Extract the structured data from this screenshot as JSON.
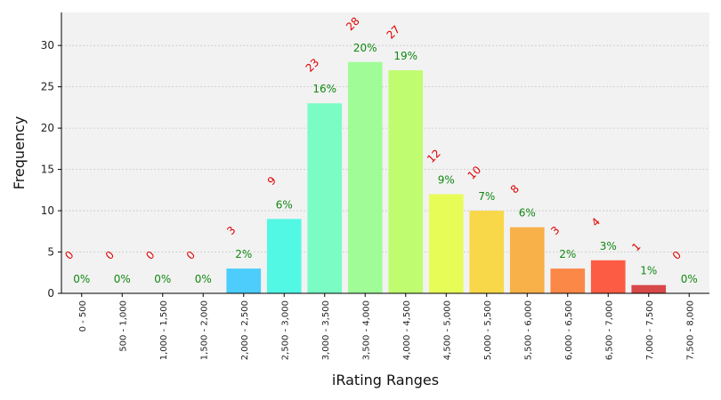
{
  "chart_data": {
    "type": "bar",
    "xlabel": "iRating Ranges",
    "ylabel": "Frequency",
    "ylim": [
      0,
      34
    ],
    "yticks": [
      0,
      5,
      10,
      15,
      20,
      25,
      30
    ],
    "grid": true,
    "categories": [
      "0 - 500",
      "500 - 1,000",
      "1,000 - 1,500",
      "1,500 - 2,000",
      "2,000 - 2,500",
      "2,500 - 3,000",
      "3,000 - 3,500",
      "3,500 - 4,000",
      "4,000 - 4,500",
      "4,500 - 5,000",
      "5,000 - 5,500",
      "5,500 - 6,000",
      "6,000 - 6,500",
      "6,500 - 7,000",
      "7,000 - 7,500",
      "7,500 - 8,000"
    ],
    "values": [
      0,
      0,
      0,
      0,
      3,
      9,
      23,
      28,
      27,
      12,
      10,
      8,
      3,
      4,
      1,
      0
    ],
    "percent_labels": [
      "0%",
      "0%",
      "0%",
      "0%",
      "2%",
      "6%",
      "16%",
      "20%",
      "19%",
      "9%",
      "7%",
      "6%",
      "2%",
      "3%",
      "1%",
      "0%"
    ],
    "bar_colors": [
      "#3a3ad4",
      "#3a5ef0",
      "#3a86f8",
      "#32aafc",
      "#4ccdfc",
      "#52f8e4",
      "#7afcc4",
      "#a0fc96",
      "#c0fc70",
      "#e8fc58",
      "#f8d848",
      "#f8b048",
      "#fc8848",
      "#fc5c44",
      "#d84848",
      "#b03030"
    ],
    "count_label_color": "#e00000",
    "pct_label_color": "#118811",
    "plot_background": "#f2f2f2"
  }
}
